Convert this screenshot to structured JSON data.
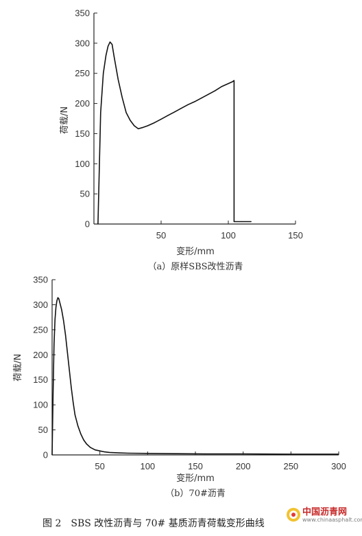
{
  "chart_data": [
    {
      "type": "line",
      "id": "a",
      "xlabel": "变形/mm",
      "ylabel": "荷载/N",
      "xlim": [
        0,
        150
      ],
      "ylim": [
        0,
        350
      ],
      "xticks": [
        50,
        100,
        150
      ],
      "yticks": [
        0,
        50,
        100,
        150,
        200,
        250,
        300,
        350
      ],
      "caption": "（a）原样SBS改性沥青",
      "grid": false,
      "series": [
        {
          "x": [
            3,
            5,
            7,
            9,
            10.5,
            12,
            13.5,
            15,
            18,
            21,
            24,
            27,
            30,
            33,
            36,
            40,
            45,
            50,
            55,
            60,
            65,
            70,
            75,
            80,
            85,
            90,
            95,
            100,
            103,
            104.3,
            104.3,
            110,
            117
          ],
          "y": [
            0,
            185,
            250,
            280,
            295,
            302,
            298,
            278,
            240,
            210,
            185,
            172,
            163,
            158,
            160,
            163,
            168,
            174,
            180,
            186,
            192,
            198,
            203,
            209,
            215,
            221,
            228,
            233,
            236,
            238,
            4,
            4,
            4
          ]
        }
      ]
    },
    {
      "type": "line",
      "id": "b",
      "xlabel": "变形/mm",
      "ylabel": "荷载/N",
      "xlim": [
        0,
        300
      ],
      "ylim": [
        0,
        350
      ],
      "xticks": [
        50,
        100,
        150,
        200,
        250,
        300
      ],
      "yticks": [
        0,
        50,
        100,
        150,
        200,
        250,
        300,
        350
      ],
      "caption": "（b）70#沥青",
      "grid": false,
      "series": [
        {
          "x": [
            0,
            1,
            2,
            3,
            4,
            5,
            6,
            7,
            8,
            10,
            12,
            14,
            16,
            18,
            20,
            22,
            24,
            27,
            30,
            33,
            36,
            40,
            45,
            50,
            55,
            60,
            70,
            80,
            100,
            130,
            160,
            200,
            250,
            300
          ],
          "y": [
            0,
            120,
            220,
            270,
            295,
            308,
            314,
            312,
            305,
            290,
            268,
            240,
            205,
            170,
            135,
            105,
            80,
            58,
            42,
            30,
            22,
            15,
            10,
            8,
            6,
            5,
            4,
            3.5,
            3,
            2.5,
            2,
            2,
            1.5,
            1.5
          ]
        }
      ]
    }
  ],
  "figure_caption": "图 2　SBS 改性沥青与 70# 基质沥青荷载变形曲线",
  "watermark": {
    "text": "中国沥青网",
    "url": "www.chinaasphalt.com"
  }
}
